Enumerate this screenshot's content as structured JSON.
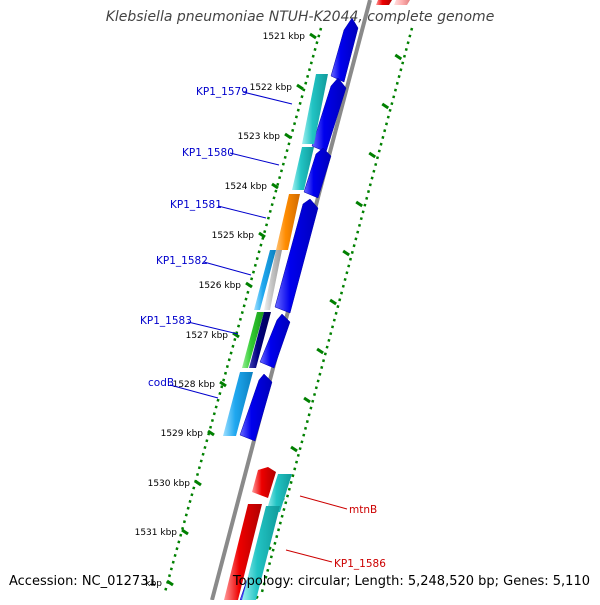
{
  "header": {
    "title": "Klebsiella pneumoniae NTUH-K2044, complete genome"
  },
  "footer": {
    "accession": "Accession: NC_012731",
    "topology": "Topology: circular; Length: 5,248,520 bp; Genes: 5,110"
  },
  "ruler": {
    "ticks": [
      {
        "label": "1521 kbp"
      },
      {
        "label": "1522 kbp"
      },
      {
        "label": "1523 kbp"
      },
      {
        "label": "1524 kbp"
      },
      {
        "label": "1525 kbp"
      },
      {
        "label": "1526 kbp"
      },
      {
        "label": "1527 kbp"
      },
      {
        "label": "1528 kbp"
      },
      {
        "label": "1529 kbp"
      },
      {
        "label": "1530 kbp"
      },
      {
        "label": "1531 kbp"
      },
      {
        "label": "kbp"
      }
    ]
  },
  "genes": [
    {
      "name": "KP1_1579",
      "color": "#0000cc"
    },
    {
      "name": "KP1_1580",
      "color": "#0000cc"
    },
    {
      "name": "KP1_1581",
      "color": "#0000cc"
    },
    {
      "name": "KP1_1582",
      "color": "#0000cc"
    },
    {
      "name": "KP1_1583",
      "color": "#0000cc"
    },
    {
      "name": "codB",
      "color": "#0000cc"
    },
    {
      "name": "mtnB",
      "color": "#cc0000"
    },
    {
      "name": "KP1_1586",
      "color": "#cc0000"
    }
  ],
  "colors": {
    "backbone": "#8a8a8a",
    "dots": "#008000",
    "forward_orf": "#0000ee",
    "cds_teal": "#20c0c0",
    "cds_orange": "#ff8c00",
    "cds_light_blue": "#20a8f0",
    "cds_green": "#33cc33",
    "cds_navy": "#000080",
    "cds_grey": "#c0c0c0",
    "cds_red": "#ee0000"
  }
}
